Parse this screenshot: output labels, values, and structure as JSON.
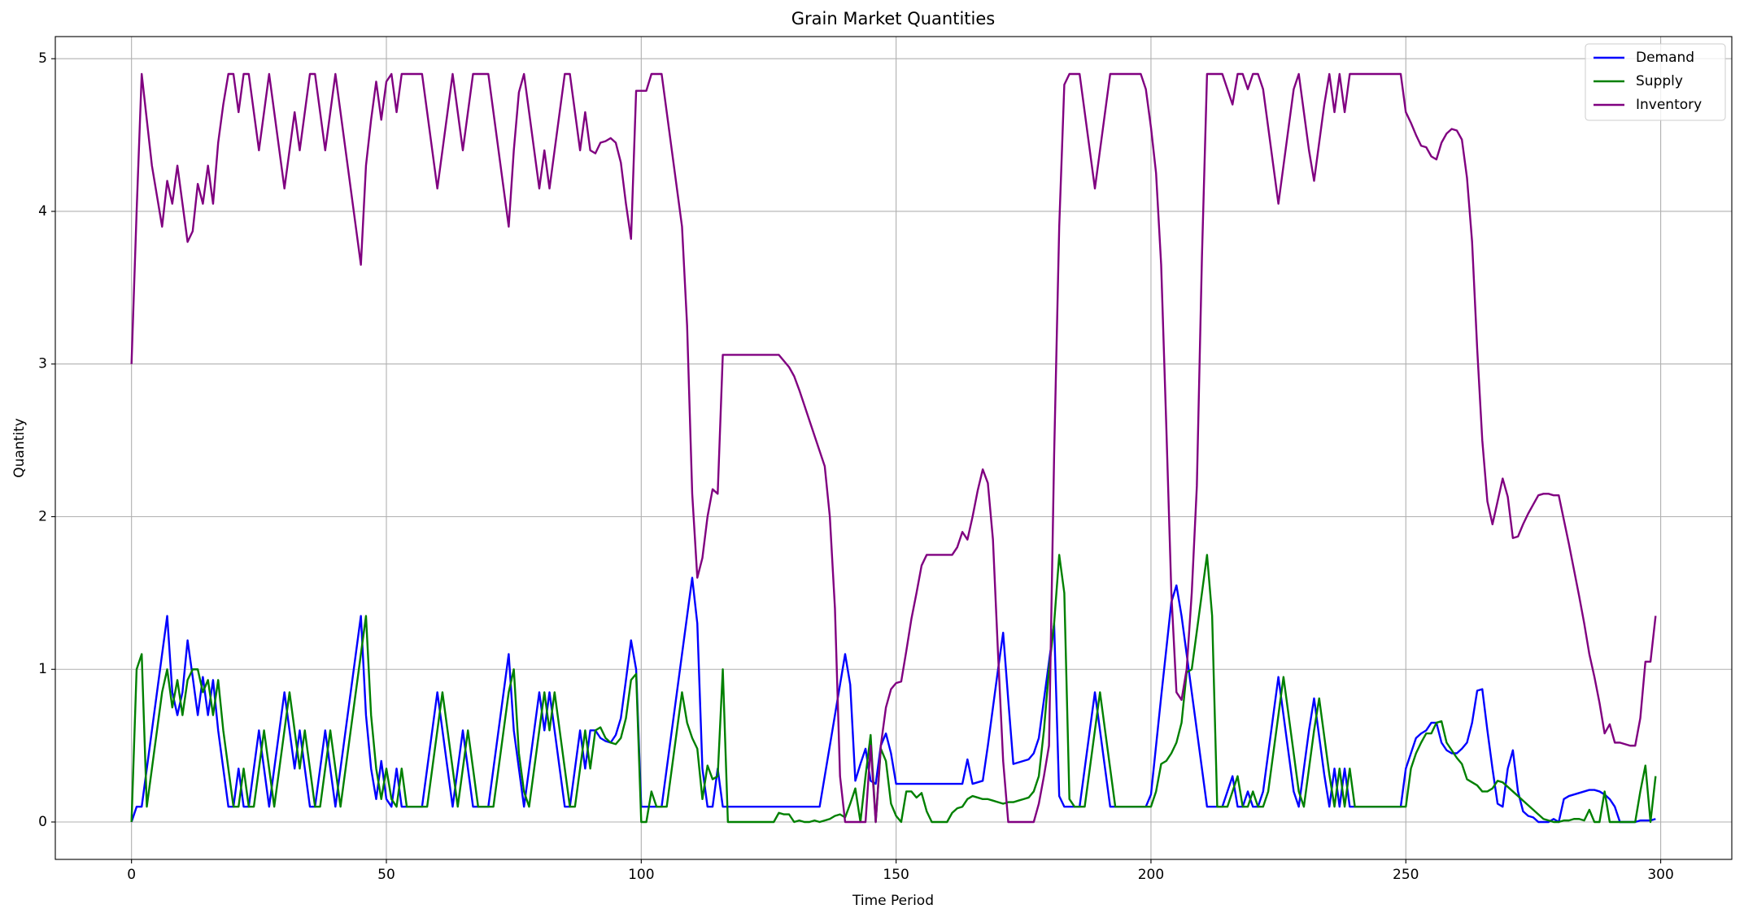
{
  "chart_data": {
    "type": "line",
    "title": "Grain Market Quantities",
    "x_label": "Time Period",
    "y_label": "Quantity",
    "x": [
      0,
      1,
      2,
      3,
      4,
      5,
      6,
      7,
      8,
      9,
      10,
      11,
      12,
      13,
      14,
      15,
      16,
      17,
      18,
      19,
      20,
      21,
      22,
      23,
      24,
      25,
      26,
      27,
      28,
      29,
      30,
      31,
      32,
      33,
      34,
      35,
      36,
      37,
      38,
      39,
      40,
      41,
      42,
      43,
      44,
      45,
      46,
      47,
      48,
      49,
      50,
      51,
      52,
      53,
      54,
      55,
      56,
      57,
      58,
      59,
      60,
      61,
      62,
      63,
      64,
      65,
      66,
      67,
      68,
      69,
      70,
      71,
      72,
      73,
      74,
      75,
      76,
      77,
      78,
      79,
      80,
      81,
      82,
      83,
      84,
      85,
      86,
      87,
      88,
      89,
      90,
      91,
      92,
      93,
      94,
      95,
      96,
      97,
      98,
      99,
      100,
      101,
      102,
      103,
      104,
      105,
      106,
      107,
      108,
      109,
      110,
      111,
      112,
      113,
      114,
      115,
      116,
      117,
      118,
      119,
      120,
      121,
      122,
      123,
      124,
      125,
      126,
      127,
      128,
      129,
      130,
      131,
      132,
      133,
      134,
      135,
      136,
      137,
      138,
      139,
      140,
      141,
      142,
      143,
      144,
      145,
      146,
      147,
      148,
      149,
      150,
      151,
      152,
      153,
      154,
      155,
      156,
      157,
      158,
      159,
      160,
      161,
      162,
      163,
      164,
      165,
      166,
      167,
      168,
      169,
      170,
      171,
      172,
      173,
      174,
      175,
      176,
      177,
      178,
      179,
      180,
      181,
      182,
      183,
      184,
      185,
      186,
      187,
      188,
      189,
      190,
      191,
      192,
      193,
      194,
      195,
      196,
      197,
      198,
      199,
      200,
      201,
      202,
      203,
      204,
      205,
      206,
      207,
      208,
      209,
      210,
      211,
      212,
      213,
      214,
      215,
      216,
      217,
      218,
      219,
      220,
      221,
      222,
      223,
      224,
      225,
      226,
      227,
      228,
      229,
      230,
      231,
      232,
      233,
      234,
      235,
      236,
      237,
      238,
      239,
      240,
      241,
      242,
      243,
      244,
      245,
      246,
      247,
      248,
      249,
      250,
      251,
      252,
      253,
      254,
      255,
      256,
      257,
      258,
      259,
      260,
      261,
      262,
      263,
      264,
      265,
      266,
      267,
      268,
      269,
      270,
      271,
      272,
      273,
      274,
      275,
      276,
      277,
      278,
      279,
      280,
      281,
      282,
      283,
      284,
      285,
      286,
      287,
      288,
      289,
      290,
      291,
      292,
      293,
      294,
      295,
      296,
      297,
      298,
      299
    ],
    "series": [
      {
        "name": "Demand",
        "color": "#0000ff",
        "values": [
          0,
          0.1,
          0.1,
          0.35,
          0.6,
          0.85,
          1.1,
          1.35,
          0.85,
          0.7,
          0.85,
          1.19,
          0.95,
          0.7,
          0.95,
          0.7,
          0.93,
          0.6,
          0.35,
          0.1,
          0.1,
          0.35,
          0.1,
          0.1,
          0.35,
          0.6,
          0.35,
          0.1,
          0.35,
          0.6,
          0.85,
          0.6,
          0.35,
          0.6,
          0.35,
          0.1,
          0.1,
          0.35,
          0.6,
          0.35,
          0.1,
          0.35,
          0.6,
          0.85,
          1.1,
          1.35,
          0.7,
          0.35,
          0.15,
          0.4,
          0.15,
          0.1,
          0.35,
          0.1,
          0.1,
          0.1,
          0.1,
          0.1,
          0.35,
          0.6,
          0.85,
          0.6,
          0.35,
          0.1,
          0.35,
          0.6,
          0.35,
          0.1,
          0.1,
          0.1,
          0.1,
          0.35,
          0.6,
          0.85,
          1.1,
          0.6,
          0.35,
          0.1,
          0.35,
          0.6,
          0.85,
          0.6,
          0.85,
          0.6,
          0.35,
          0.1,
          0.1,
          0.35,
          0.6,
          0.35,
          0.6,
          0.6,
          0.55,
          0.53,
          0.52,
          0.57,
          0.68,
          0.93,
          1.19,
          1.0,
          0.1,
          0.1,
          0.1,
          0.1,
          0.1,
          0.35,
          0.6,
          0.85,
          1.1,
          1.35,
          1.6,
          1.3,
          0.35,
          0.1,
          0.1,
          0.35,
          0.1,
          0.1,
          0.1,
          0.1,
          0.1,
          0.1,
          0.1,
          0.1,
          0.1,
          0.1,
          0.1,
          0.1,
          0.1,
          0.1,
          0.1,
          0.1,
          0.1,
          0.1,
          0.1,
          0.1,
          0.3,
          0.5,
          0.7,
          0.9,
          1.1,
          0.9,
          0.27,
          0.38,
          0.48,
          0.27,
          0.25,
          0.5,
          0.58,
          0.45,
          0.25,
          0.25,
          0.25,
          0.25,
          0.25,
          0.25,
          0.25,
          0.25,
          0.25,
          0.25,
          0.25,
          0.25,
          0.25,
          0.25,
          0.41,
          0.25,
          0.26,
          0.27,
          0.5,
          0.75,
          1.0,
          1.24,
          0.8,
          0.38,
          0.39,
          0.4,
          0.41,
          0.45,
          0.55,
          0.8,
          1.05,
          1.3,
          0.17,
          0.1,
          0.1,
          0.1,
          0.1,
          0.35,
          0.6,
          0.85,
          0.6,
          0.35,
          0.1,
          0.1,
          0.1,
          0.1,
          0.1,
          0.1,
          0.1,
          0.1,
          0.18,
          0.5,
          0.82,
          1.13,
          1.44,
          1.55,
          1.35,
          1.1,
          0.85,
          0.6,
          0.35,
          0.1,
          0.1,
          0.1,
          0.1,
          0.2,
          0.3,
          0.1,
          0.1,
          0.2,
          0.1,
          0.1,
          0.2,
          0.45,
          0.7,
          0.95,
          0.7,
          0.45,
          0.2,
          0.1,
          0.35,
          0.6,
          0.81,
          0.56,
          0.31,
          0.1,
          0.35,
          0.1,
          0.35,
          0.1,
          0.1,
          0.1,
          0.1,
          0.1,
          0.1,
          0.1,
          0.1,
          0.1,
          0.1,
          0.1,
          0.35,
          0.45,
          0.55,
          0.58,
          0.6,
          0.65,
          0.65,
          0.52,
          0.47,
          0.45,
          0.45,
          0.48,
          0.52,
          0.65,
          0.86,
          0.87,
          0.6,
          0.35,
          0.12,
          0.1,
          0.35,
          0.47,
          0.2,
          0.07,
          0.04,
          0.03,
          0,
          0,
          0,
          0.02,
          0,
          0.15,
          0.17,
          0.18,
          0.19,
          0.2,
          0.21,
          0.21,
          0.2,
          0.18,
          0.15,
          0.1,
          0,
          0,
          0,
          0,
          0.01,
          0.01,
          0.01,
          0.02
        ]
      },
      {
        "name": "Supply",
        "color": "#008000",
        "values": [
          0,
          1.0,
          1.1,
          0.1,
          0.35,
          0.6,
          0.85,
          1.0,
          0.75,
          0.93,
          0.7,
          0.93,
          1.0,
          1.0,
          0.85,
          0.93,
          0.7,
          0.93,
          0.6,
          0.35,
          0.1,
          0.1,
          0.35,
          0.1,
          0.1,
          0.35,
          0.6,
          0.35,
          0.1,
          0.35,
          0.6,
          0.85,
          0.6,
          0.35,
          0.6,
          0.35,
          0.1,
          0.1,
          0.35,
          0.6,
          0.35,
          0.1,
          0.35,
          0.6,
          0.85,
          1.1,
          1.35,
          0.7,
          0.35,
          0.15,
          0.35,
          0.15,
          0.1,
          0.35,
          0.1,
          0.1,
          0.1,
          0.1,
          0.1,
          0.35,
          0.6,
          0.85,
          0.6,
          0.35,
          0.1,
          0.35,
          0.6,
          0.35,
          0.1,
          0.1,
          0.1,
          0.1,
          0.35,
          0.6,
          0.85,
          1.0,
          0.45,
          0.2,
          0.1,
          0.35,
          0.6,
          0.85,
          0.6,
          0.85,
          0.6,
          0.35,
          0.1,
          0.1,
          0.35,
          0.6,
          0.35,
          0.6,
          0.62,
          0.55,
          0.52,
          0.51,
          0.55,
          0.68,
          0.93,
          0.97,
          0,
          0,
          0.2,
          0.1,
          0.1,
          0.1,
          0.35,
          0.6,
          0.85,
          0.65,
          0.55,
          0.48,
          0.15,
          0.37,
          0.28,
          0.3,
          1.0,
          0,
          0,
          0,
          0,
          0,
          0,
          0,
          0,
          0,
          0,
          0.06,
          0.05,
          0.05,
          0,
          0.01,
          0,
          0,
          0.01,
          0,
          0.01,
          0.02,
          0.04,
          0.05,
          0.03,
          0.12,
          0.22,
          0,
          0.3,
          0.57,
          0,
          0.48,
          0.4,
          0.12,
          0.04,
          0,
          0.2,
          0.2,
          0.16,
          0.19,
          0.07,
          0,
          0,
          0,
          0,
          0.06,
          0.09,
          0.1,
          0.15,
          0.17,
          0.16,
          0.15,
          0.15,
          0.14,
          0.13,
          0.12,
          0.13,
          0.13,
          0.14,
          0.15,
          0.16,
          0.2,
          0.3,
          0.6,
          1.0,
          1.3,
          1.75,
          1.5,
          0.15,
          0.1,
          0.1,
          0.1,
          0.35,
          0.6,
          0.85,
          0.6,
          0.35,
          0.1,
          0.1,
          0.1,
          0.1,
          0.1,
          0.1,
          0.1,
          0.1,
          0.2,
          0.38,
          0.4,
          0.45,
          0.52,
          0.65,
          0.98,
          1.0,
          1.25,
          1.5,
          1.75,
          1.35,
          0.1,
          0.1,
          0.1,
          0.2,
          0.3,
          0.1,
          0.1,
          0.2,
          0.1,
          0.1,
          0.2,
          0.45,
          0.7,
          0.95,
          0.7,
          0.45,
          0.2,
          0.1,
          0.35,
          0.6,
          0.81,
          0.56,
          0.31,
          0.1,
          0.35,
          0.1,
          0.35,
          0.1,
          0.1,
          0.1,
          0.1,
          0.1,
          0.1,
          0.1,
          0.1,
          0.1,
          0.1,
          0.1,
          0.35,
          0.45,
          0.52,
          0.58,
          0.58,
          0.65,
          0.66,
          0.52,
          0.47,
          0.42,
          0.38,
          0.28,
          0.26,
          0.24,
          0.2,
          0.2,
          0.22,
          0.27,
          0.26,
          0.23,
          0.2,
          0.17,
          0.14,
          0.11,
          0.08,
          0.05,
          0.02,
          0.01,
          0,
          0,
          0.01,
          0.01,
          0.02,
          0.02,
          0.01,
          0.08,
          0,
          0,
          0.2,
          0,
          0,
          0,
          0,
          0,
          0,
          0.2,
          0.37,
          0,
          0.3
        ]
      },
      {
        "name": "Inventory",
        "color": "#800080",
        "values": [
          3.0,
          4.0,
          4.9,
          4.6,
          4.3,
          4.1,
          3.9,
          4.2,
          4.05,
          4.3,
          4.05,
          3.8,
          3.87,
          4.18,
          4.05,
          4.3,
          4.05,
          4.45,
          4.7,
          4.9,
          4.9,
          4.65,
          4.9,
          4.9,
          4.65,
          4.4,
          4.65,
          4.9,
          4.65,
          4.4,
          4.15,
          4.4,
          4.65,
          4.4,
          4.65,
          4.9,
          4.9,
          4.65,
          4.4,
          4.65,
          4.9,
          4.65,
          4.4,
          4.15,
          3.9,
          3.65,
          4.3,
          4.6,
          4.85,
          4.6,
          4.85,
          4.9,
          4.65,
          4.9,
          4.9,
          4.9,
          4.9,
          4.9,
          4.65,
          4.4,
          4.15,
          4.4,
          4.65,
          4.9,
          4.65,
          4.4,
          4.65,
          4.9,
          4.9,
          4.9,
          4.9,
          4.65,
          4.4,
          4.15,
          3.9,
          4.4,
          4.78,
          4.9,
          4.65,
          4.4,
          4.15,
          4.4,
          4.15,
          4.4,
          4.65,
          4.9,
          4.9,
          4.65,
          4.4,
          4.65,
          4.4,
          4.38,
          4.45,
          4.46,
          4.48,
          4.45,
          4.32,
          4.05,
          3.82,
          4.79,
          4.79,
          4.79,
          4.9,
          4.9,
          4.9,
          4.65,
          4.4,
          4.15,
          3.9,
          3.25,
          2.15,
          1.6,
          1.73,
          2.0,
          2.18,
          2.15,
          3.06,
          3.06,
          3.06,
          3.06,
          3.06,
          3.06,
          3.06,
          3.06,
          3.06,
          3.06,
          3.06,
          3.06,
          3.02,
          2.98,
          2.92,
          2.83,
          2.73,
          2.63,
          2.53,
          2.43,
          2.33,
          2.0,
          1.4,
          0.3,
          0,
          0,
          0,
          0,
          0,
          0.5,
          0,
          0.5,
          0.75,
          0.87,
          0.91,
          0.92,
          1.12,
          1.33,
          1.5,
          1.68,
          1.75,
          1.75,
          1.75,
          1.75,
          1.75,
          1.75,
          1.8,
          1.9,
          1.85,
          2.0,
          2.17,
          2.31,
          2.22,
          1.85,
          1.1,
          0.4,
          0,
          0,
          0,
          0,
          0,
          0,
          0.12,
          0.3,
          0.5,
          2.4,
          3.9,
          4.83,
          4.9,
          4.9,
          4.9,
          4.65,
          4.4,
          4.15,
          4.4,
          4.65,
          4.9,
          4.9,
          4.9,
          4.9,
          4.9,
          4.9,
          4.9,
          4.8,
          4.55,
          4.25,
          3.65,
          2.6,
          1.5,
          0.85,
          0.8,
          1.0,
          1.5,
          2.2,
          3.7,
          4.9,
          4.9,
          4.9,
          4.9,
          4.8,
          4.7,
          4.9,
          4.9,
          4.8,
          4.9,
          4.9,
          4.8,
          4.55,
          4.3,
          4.05,
          4.3,
          4.55,
          4.8,
          4.9,
          4.65,
          4.4,
          4.2,
          4.45,
          4.7,
          4.9,
          4.65,
          4.9,
          4.65,
          4.9,
          4.9,
          4.9,
          4.9,
          4.9,
          4.9,
          4.9,
          4.9,
          4.9,
          4.9,
          4.9,
          4.65,
          4.58,
          4.5,
          4.43,
          4.42,
          4.36,
          4.34,
          4.45,
          4.51,
          4.54,
          4.53,
          4.47,
          4.22,
          3.8,
          3.1,
          2.5,
          2.1,
          1.95,
          2.1,
          2.25,
          2.13,
          1.86,
          1.87,
          1.95,
          2.02,
          2.08,
          2.14,
          2.15,
          2.15,
          2.14,
          2.14,
          1.98,
          1.82,
          1.65,
          1.48,
          1.3,
          1.1,
          0.95,
          0.78,
          0.58,
          0.64,
          0.52,
          0.52,
          0.51,
          0.5,
          0.5,
          0.68,
          1.05,
          1.05,
          1.35
        ]
      }
    ],
    "xlim": [
      -14.95,
      313.95
    ],
    "xticks": [
      0,
      50,
      100,
      150,
      200,
      250,
      300
    ],
    "ylim": [
      -0.245,
      5.145
    ],
    "yticks": [
      0,
      1,
      2,
      3,
      4,
      5
    ],
    "grid": true,
    "legend": "upper right"
  }
}
